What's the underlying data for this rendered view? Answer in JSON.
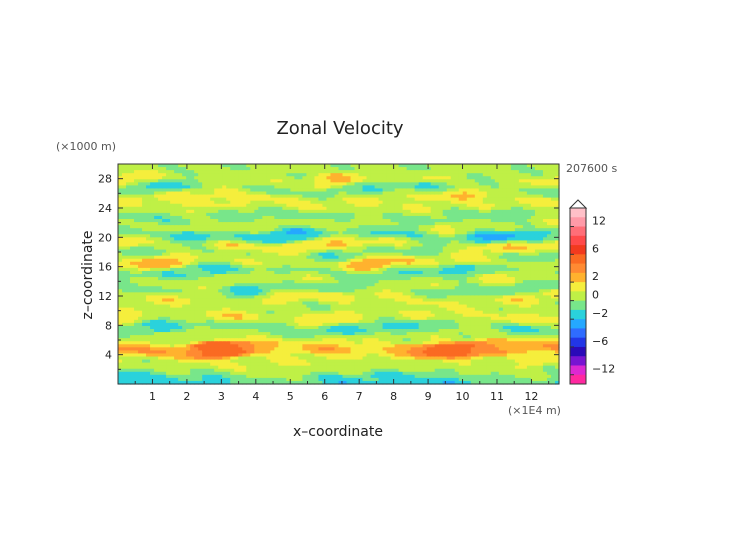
{
  "chart_data": {
    "type": "heatmap",
    "title": "Zonal Velocity",
    "xlabel": "x–coordinate",
    "ylabel": "z–coordinate",
    "x_unit": "(×1E4 m)",
    "y_unit": "(×1000 m)",
    "time_label": "207600 s",
    "xlim": [
      0,
      12.8
    ],
    "ylim": [
      0,
      30
    ],
    "x_ticks": [
      "1",
      "2",
      "3",
      "4",
      "5",
      "6",
      "7",
      "8",
      "9",
      "10",
      "11",
      "12"
    ],
    "y_ticks": [
      "4",
      "8",
      "12",
      "16",
      "20",
      "24",
      "28"
    ],
    "colorbar": {
      "tick_labels": [
        "12",
        "6",
        "2",
        "0",
        "−2",
        "−6",
        "−12"
      ],
      "levels": [
        {
          "value": 14,
          "color": "#ffc0c8"
        },
        {
          "value": 12,
          "color": "#ff9aa8"
        },
        {
          "value": 10,
          "color": "#ff6e78"
        },
        {
          "value": 8,
          "color": "#ff4a4a"
        },
        {
          "value": 6,
          "color": "#f23a1e"
        },
        {
          "value": 4,
          "color": "#fa6a22"
        },
        {
          "value": 3,
          "color": "#ff8a32"
        },
        {
          "value": 2,
          "color": "#ffb22e"
        },
        {
          "value": 1,
          "color": "#f5ee3c"
        },
        {
          "value": 0,
          "color": "#bff046"
        },
        {
          "value": -1,
          "color": "#78e68a"
        },
        {
          "value": -2,
          "color": "#2ad2dc"
        },
        {
          "value": -3,
          "color": "#25a8ff"
        },
        {
          "value": -4,
          "color": "#2f6cff"
        },
        {
          "value": -6,
          "color": "#2236e6"
        },
        {
          "value": -8,
          "color": "#2a0ab8"
        },
        {
          "value": -10,
          "color": "#7814d2"
        },
        {
          "value": -12,
          "color": "#dc28d2"
        },
        {
          "value": -14,
          "color": "#ff28a0"
        }
      ]
    },
    "bands": [
      {
        "z": 0.5,
        "u": -1.2,
        "amp": 0.8
      },
      {
        "z": 1.8,
        "u": 0.3,
        "amp": 0.8
      },
      {
        "z": 3.0,
        "u": 0.8,
        "amp": 0.7
      },
      {
        "z": 4.8,
        "u": 3.1,
        "amp": 0.7
      },
      {
        "z": 6.5,
        "u": 0.5,
        "amp": 0.8
      },
      {
        "z": 7.8,
        "u": -1.2,
        "amp": 1.0
      },
      {
        "z": 9.0,
        "u": 1.5,
        "amp": 1.1
      },
      {
        "z": 10.5,
        "u": 0.4,
        "amp": 1.2
      },
      {
        "z": 11.8,
        "u": 1.6,
        "amp": 1.2
      },
      {
        "z": 12.8,
        "u": -1.0,
        "amp": 1.4
      },
      {
        "z": 14.0,
        "u": 0.8,
        "amp": 1.2
      },
      {
        "z": 15.3,
        "u": -0.8,
        "amp": 1.3
      },
      {
        "z": 16.6,
        "u": 1.6,
        "amp": 1.3
      },
      {
        "z": 17.8,
        "u": -0.5,
        "amp": 1.3
      },
      {
        "z": 19.0,
        "u": 1.8,
        "amp": 1.4
      },
      {
        "z": 20.3,
        "u": -1.6,
        "amp": 1.4
      },
      {
        "z": 21.6,
        "u": 0.8,
        "amp": 1.3
      },
      {
        "z": 22.8,
        "u": -0.6,
        "amp": 1.3
      },
      {
        "z": 24.2,
        "u": 0.9,
        "amp": 1.2
      },
      {
        "z": 25.4,
        "u": 1.4,
        "amp": 1.2
      },
      {
        "z": 26.6,
        "u": -0.8,
        "amp": 1.2
      },
      {
        "z": 27.8,
        "u": 1.2,
        "amp": 1.1
      },
      {
        "z": 29.0,
        "u": 0.2,
        "amp": 1.0
      }
    ]
  }
}
